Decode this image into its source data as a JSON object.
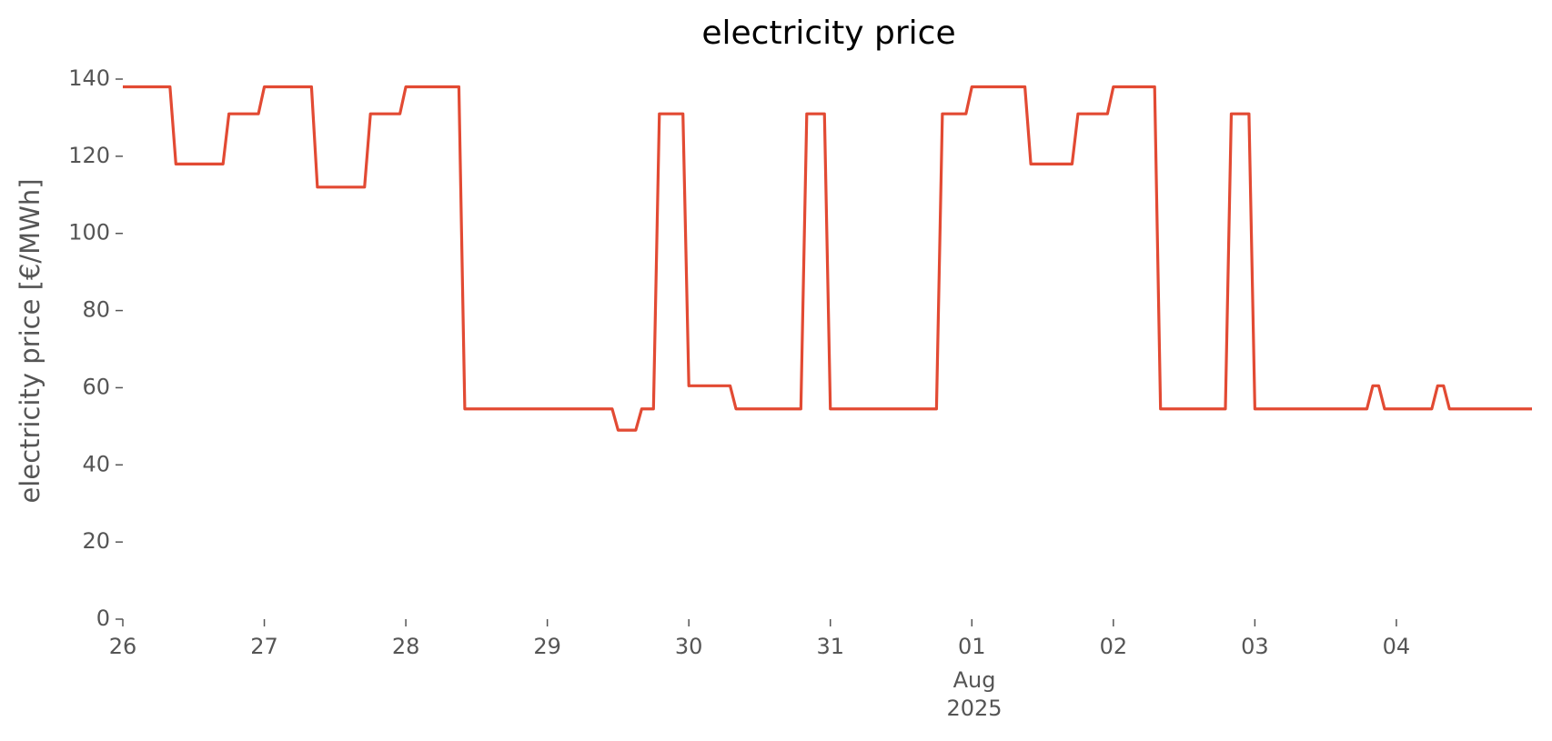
{
  "chart_data": {
    "type": "line",
    "title": "electricity price",
    "y_label": "electricity price [€/MWh]",
    "x": [
      "2025-07-26 00:00",
      "2025-07-26 08:00",
      "2025-07-26 09:00",
      "2025-07-26 17:00",
      "2025-07-26 18:00",
      "2025-07-26 23:00",
      "2025-07-27 00:00",
      "2025-07-27 08:00",
      "2025-07-27 09:00",
      "2025-07-27 17:00",
      "2025-07-27 18:00",
      "2025-07-27 23:00",
      "2025-07-28 00:00",
      "2025-07-28 09:00",
      "2025-07-28 10:00",
      "2025-07-29 11:00",
      "2025-07-29 12:00",
      "2025-07-29 15:00",
      "2025-07-29 16:00",
      "2025-07-29 18:00",
      "2025-07-29 19:00",
      "2025-07-29 23:00",
      "2025-07-30 00:00",
      "2025-07-30 07:00",
      "2025-07-30 08:00",
      "2025-07-30 19:00",
      "2025-07-30 20:00",
      "2025-07-30 23:00",
      "2025-07-31 00:00",
      "2025-07-31 18:00",
      "2025-07-31 19:00",
      "2025-07-31 23:00",
      "2025-08-01 00:00",
      "2025-08-01 09:00",
      "2025-08-01 10:00",
      "2025-08-01 17:00",
      "2025-08-01 18:00",
      "2025-08-01 23:00",
      "2025-08-02 00:00",
      "2025-08-02 07:00",
      "2025-08-02 08:00",
      "2025-08-02 19:00",
      "2025-08-02 20:00",
      "2025-08-02 23:00",
      "2025-08-03 00:00",
      "2025-08-03 19:00",
      "2025-08-03 20:00",
      "2025-08-03 21:00",
      "2025-08-03 22:00",
      "2025-08-04 06:00",
      "2025-08-04 07:00",
      "2025-08-04 08:00",
      "2025-08-04 09:00",
      "2025-08-04 23:00"
    ],
    "series": [
      {
        "name": "electricity price",
        "color": "#e24a33",
        "values": [
          138,
          138,
          118,
          118,
          131,
          131,
          138,
          138,
          112,
          112,
          131,
          131,
          138,
          138,
          54.5,
          54.5,
          49,
          49,
          54.5,
          54.5,
          131,
          131,
          60.5,
          60.5,
          54.5,
          54.5,
          131,
          131,
          54.5,
          54.5,
          131,
          131,
          138,
          138,
          118,
          118,
          131,
          131,
          138,
          138,
          54.5,
          54.5,
          131,
          131,
          54.5,
          54.5,
          60.5,
          60.5,
          54.5,
          54.5,
          60.5,
          60.5,
          54.5,
          54.5
        ]
      }
    ],
    "xlim": [
      "2025-07-26 00:00",
      "2025-08-04 23:00"
    ],
    "xticks": [
      {
        "value": "2025-07-26 00:00",
        "label": "26"
      },
      {
        "value": "2025-07-27 00:00",
        "label": "27"
      },
      {
        "value": "2025-07-28 00:00",
        "label": "28"
      },
      {
        "value": "2025-07-29 00:00",
        "label": "29"
      },
      {
        "value": "2025-07-30 00:00",
        "label": "30"
      },
      {
        "value": "2025-07-31 00:00",
        "label": "31"
      },
      {
        "value": "2025-08-01 00:00",
        "label": "01"
      },
      {
        "value": "2025-08-02 00:00",
        "label": "02"
      },
      {
        "value": "2025-08-03 00:00",
        "label": "03"
      },
      {
        "value": "2025-08-04 00:00",
        "label": "04"
      }
    ],
    "x_month_label": "Aug",
    "x_year_label": "2025",
    "ylim": [
      0,
      140
    ],
    "yticks": [
      0,
      20,
      40,
      60,
      80,
      100,
      120,
      140
    ],
    "grid": false
  }
}
